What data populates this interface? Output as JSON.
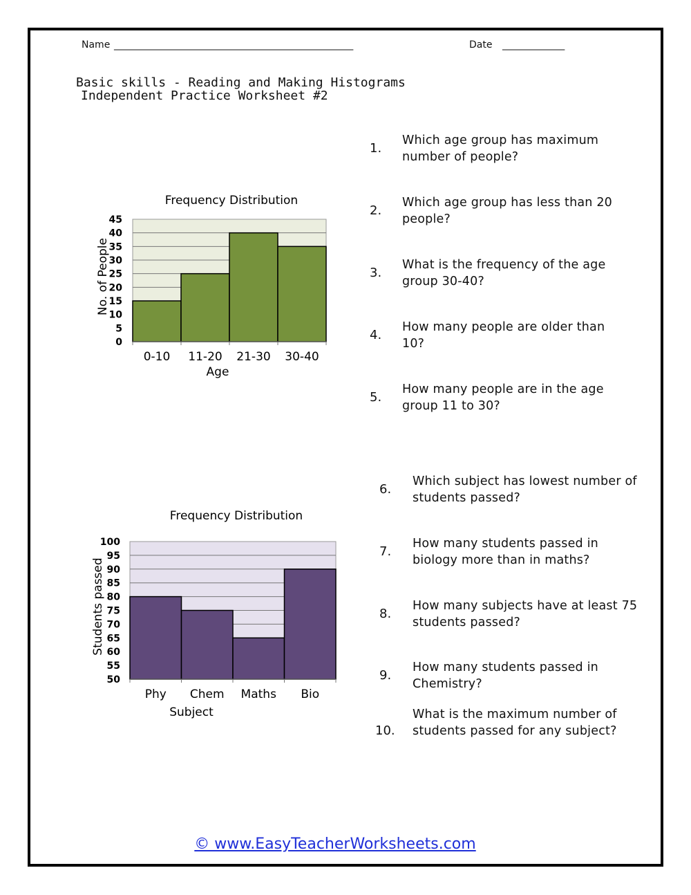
{
  "header": {
    "name_label": "Name",
    "name_blank": "______________________________________________________",
    "date_label": "Date",
    "date_blank": "______________"
  },
  "title": {
    "line1": "Basic skills - Reading and Making Histograms",
    "line2": "Independent Practice Worksheet #2"
  },
  "questions": [
    {
      "num": "1.",
      "text": "Which age group has maximum number of people?"
    },
    {
      "num": "2.",
      "text": "Which age group has less than 20 people?"
    },
    {
      "num": "3.",
      "text": "What is the frequency of the age group 30-40?"
    },
    {
      "num": "4.",
      "text": "How many people are older than 10?"
    },
    {
      "num": "5.",
      "text": "How many people are in the age group 11 to 30?"
    },
    {
      "num": "6.",
      "text": "Which subject has lowest number of students passed?"
    },
    {
      "num": "7.",
      "text": "How many students passed in biology more than in maths?"
    },
    {
      "num": "8.",
      "text": "How many subjects have at least 75 students passed?"
    },
    {
      "num": "9.",
      "text": "How many students passed in Chemistry?"
    },
    {
      "num": "10.",
      "text": "What is the maximum number of students passed for any subject?"
    }
  ],
  "chart_data": [
    {
      "type": "bar",
      "title": "Frequency Distribution",
      "xlabel": "Age",
      "ylabel": "No. of People",
      "categories": [
        "0-10",
        "11-20",
        "21-30",
        "30-40"
      ],
      "values": [
        15,
        25,
        40,
        35
      ],
      "ylim": [
        0,
        45
      ],
      "yticks": [
        0,
        5,
        10,
        15,
        20,
        25,
        30,
        35,
        40,
        45
      ],
      "grid": true,
      "bar_color": "#76923c",
      "plot_bg": "#ebeedf"
    },
    {
      "type": "bar",
      "title": "Frequency Distribution",
      "xlabel": "Subject",
      "ylabel": "Students passed",
      "categories": [
        "Phy",
        "Chem",
        "Maths",
        "Bio"
      ],
      "values": [
        80,
        75,
        65,
        90
      ],
      "ylim": [
        50,
        100
      ],
      "yticks": [
        50,
        55,
        60,
        65,
        70,
        75,
        80,
        85,
        90,
        95,
        100
      ],
      "grid": true,
      "bar_color": "#5f497a",
      "plot_bg": "#e6e1ee"
    }
  ],
  "footer": {
    "link": "© www.EasyTeacherWorksheets.com"
  }
}
